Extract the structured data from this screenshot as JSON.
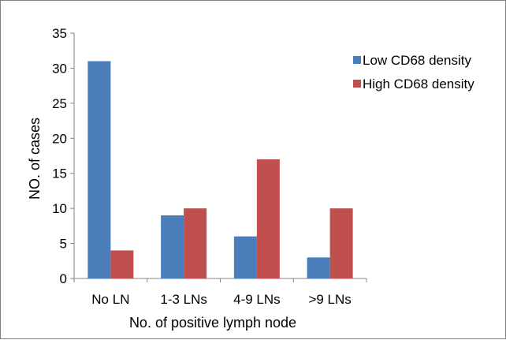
{
  "chart_data": {
    "type": "bar",
    "title": "",
    "xlabel": "No. of positive lymph node",
    "ylabel": "NO. of cases",
    "categories": [
      "No LN",
      "1-3 LNs",
      "4-9 LNs",
      ">9 LNs"
    ],
    "series": [
      {
        "name": "Low CD68 density",
        "color": "#4a7ebb",
        "values": [
          31,
          9,
          6,
          3
        ]
      },
      {
        "name": "High CD68 density",
        "color": "#c0504d",
        "values": [
          4,
          10,
          17,
          10
        ]
      }
    ],
    "ylim": [
      0,
      35
    ],
    "yticks": [
      "0",
      "5",
      "10",
      "15",
      "20",
      "25",
      "30",
      "35"
    ],
    "grid": false,
    "legend_position": "top-right"
  }
}
